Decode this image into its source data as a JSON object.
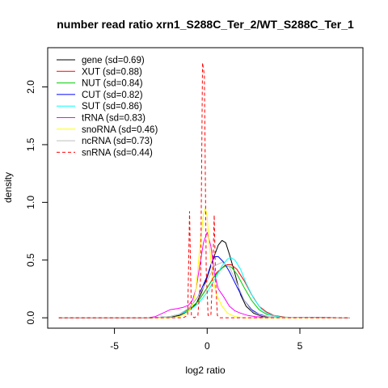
{
  "chart_data": {
    "type": "line",
    "title": "number read ratio xrn1_S288C_Ter_2/WT_S288C_Ter_1",
    "xlabel": "log2 ratio",
    "ylabel": "density",
    "xlim": [
      -8.6,
      8.4
    ],
    "ylim": [
      -0.09,
      2.34
    ],
    "x_ticks": [
      -5,
      0,
      5
    ],
    "y_ticks": [
      0.0,
      0.5,
      1.0,
      1.5,
      2.0
    ],
    "x_tick_labels": [
      "-5",
      "0",
      "5"
    ],
    "y_tick_labels": [
      "0.0",
      "0.5",
      "1.0",
      "1.5",
      "2.0"
    ],
    "grid": false,
    "legend_position": "top-left",
    "series": [
      {
        "name": "gene (sd=0.69)",
        "color": "#000000",
        "dash": "solid",
        "x": [
          -8,
          -3,
          -2,
          -1.5,
          -1,
          -0.6,
          -0.3,
          0,
          0.3,
          0.6,
          0.8,
          1.0,
          1.2,
          1.5,
          1.8,
          2.1,
          2.5,
          3,
          4,
          7.7
        ],
        "y": [
          0,
          0,
          0.005,
          0.02,
          0.06,
          0.12,
          0.22,
          0.35,
          0.5,
          0.63,
          0.67,
          0.65,
          0.55,
          0.38,
          0.2,
          0.1,
          0.04,
          0.01,
          0.002,
          0
        ]
      },
      {
        "name": "XUT (sd=0.88)",
        "color": "#ff0000",
        "dash": "solid",
        "x": [
          -8,
          -3,
          -2,
          -1.5,
          -1,
          -0.5,
          0,
          0.5,
          1.0,
          1.3,
          1.6,
          2.0,
          2.4,
          2.8,
          3.2,
          3.6,
          4.2,
          7.7
        ],
        "y": [
          0,
          0,
          0.01,
          0.03,
          0.07,
          0.14,
          0.26,
          0.39,
          0.46,
          0.46,
          0.42,
          0.32,
          0.2,
          0.1,
          0.05,
          0.02,
          0.005,
          0
        ]
      },
      {
        "name": "NUT (sd=0.84)",
        "color": "#00cd00",
        "dash": "solid",
        "x": [
          -8,
          -3,
          -2,
          -1.5,
          -1,
          -0.5,
          0,
          0.4,
          0.8,
          1.0,
          1.3,
          1.6,
          2.0,
          2.4,
          2.8,
          3.2,
          4,
          7.7
        ],
        "y": [
          0,
          0,
          0.01,
          0.03,
          0.07,
          0.14,
          0.26,
          0.36,
          0.43,
          0.45,
          0.44,
          0.38,
          0.26,
          0.15,
          0.07,
          0.03,
          0.005,
          0
        ]
      },
      {
        "name": "CUT (sd=0.82)",
        "color": "#0000ff",
        "dash": "solid",
        "x": [
          -8,
          -3,
          -2,
          -1.5,
          -1,
          -0.5,
          0,
          0.2,
          0.4,
          0.6,
          0.9,
          1.2,
          1.6,
          2.0,
          2.4,
          2.8,
          3.4,
          7.7
        ],
        "y": [
          0,
          0,
          0.01,
          0.03,
          0.08,
          0.18,
          0.36,
          0.46,
          0.53,
          0.53,
          0.48,
          0.4,
          0.27,
          0.15,
          0.07,
          0.03,
          0.005,
          0
        ]
      },
      {
        "name": "SUT (sd=0.86)",
        "color": "#00ffff",
        "dash": "solid",
        "x": [
          -8,
          -3,
          -2,
          -1.5,
          -1,
          -0.5,
          0,
          0.5,
          0.8,
          1.1,
          1.3,
          1.5,
          1.8,
          2.1,
          2.5,
          2.9,
          3.3,
          4,
          7.7
        ],
        "y": [
          0,
          0,
          0.01,
          0.03,
          0.06,
          0.12,
          0.22,
          0.36,
          0.45,
          0.51,
          0.52,
          0.5,
          0.42,
          0.3,
          0.17,
          0.08,
          0.03,
          0.005,
          0
        ]
      },
      {
        "name": "tRNA (sd=0.83)",
        "color": "#ff00ff",
        "dash": "solid",
        "x": [
          -8,
          -3.2,
          -2.8,
          -2.4,
          -2.0,
          -1.6,
          -1.3,
          -1.0,
          -0.8,
          -0.6,
          -0.4,
          -0.2,
          0,
          0.2,
          0.4,
          0.6,
          0.9,
          1.2,
          1.5,
          1.8,
          2.2,
          2.6,
          3,
          7.7
        ],
        "y": [
          0,
          0,
          0.01,
          0.04,
          0.07,
          0.08,
          0.09,
          0.11,
          0.15,
          0.25,
          0.45,
          0.65,
          0.74,
          0.62,
          0.38,
          0.25,
          0.18,
          0.1,
          0.06,
          0.04,
          0.02,
          0.01,
          0.005,
          0
        ]
      },
      {
        "name": "snoRNA (sd=0.46)",
        "color": "#ffff00",
        "dash": "solid",
        "x": [
          -8,
          -2,
          -1.5,
          -1.1,
          -0.8,
          -0.6,
          -0.4,
          -0.2,
          -0.1,
          0,
          0.1,
          0.3,
          0.5,
          0.8,
          1.1,
          1.5,
          2,
          7.7
        ],
        "y": [
          0,
          0,
          0.01,
          0.04,
          0.1,
          0.25,
          0.6,
          0.9,
          0.95,
          0.88,
          0.65,
          0.35,
          0.2,
          0.1,
          0.04,
          0.01,
          0,
          0
        ]
      },
      {
        "name": "ncRNA (sd=0.73)",
        "color": "#bebebe",
        "dash": "solid",
        "x": [
          -8,
          -3,
          -2,
          -1.5,
          -1,
          -0.5,
          0,
          0.4,
          0.8,
          1.2,
          1.6,
          2.0,
          2.4,
          2.9,
          3.5,
          7.7
        ],
        "y": [
          0,
          0,
          0.01,
          0.03,
          0.08,
          0.18,
          0.32,
          0.45,
          0.48,
          0.44,
          0.3,
          0.15,
          0.06,
          0.02,
          0.005,
          0
        ]
      },
      {
        "name": "snRNA (sd=0.44)",
        "color": "#ff0000",
        "dash": "dashed",
        "x": [
          -8,
          -1.3,
          -1.05,
          -0.95,
          -0.85,
          -0.7,
          -0.5,
          -0.35,
          -0.25,
          -0.15,
          -0.05,
          0.05,
          0.2,
          0.3,
          0.38,
          0.45,
          0.55,
          0.7,
          7.7
        ],
        "y": [
          0,
          0,
          0.02,
          0.92,
          0.02,
          0,
          0.02,
          0.35,
          2.21,
          2.1,
          0.4,
          0.02,
          0.02,
          0.4,
          0.89,
          0.35,
          0.02,
          0,
          0
        ]
      }
    ]
  }
}
